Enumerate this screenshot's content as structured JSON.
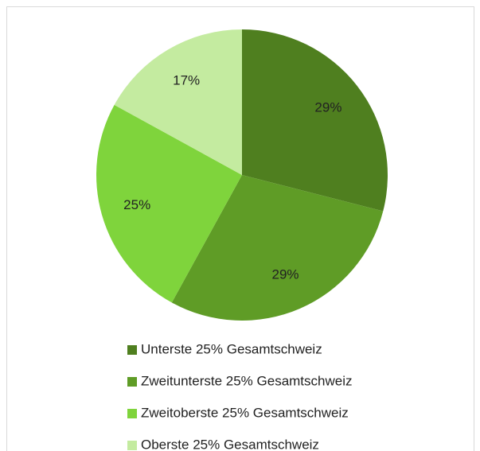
{
  "chart_data": {
    "type": "pie",
    "categories": [
      "Unterste 25% Gesamtschweiz",
      "Zweitunterste 25% Gesamtschweiz",
      "Zweitoberste 25% Gesamtschweiz",
      "Oberste 25% Gesamtschweiz"
    ],
    "values": [
      29,
      29,
      25,
      17
    ],
    "value_labels": [
      "29%",
      "29%",
      "25%",
      "17%"
    ],
    "colors": [
      "#4f7f1f",
      "#5f9c26",
      "#7fd43c",
      "#c4eba0"
    ],
    "legend": "bottom"
  }
}
